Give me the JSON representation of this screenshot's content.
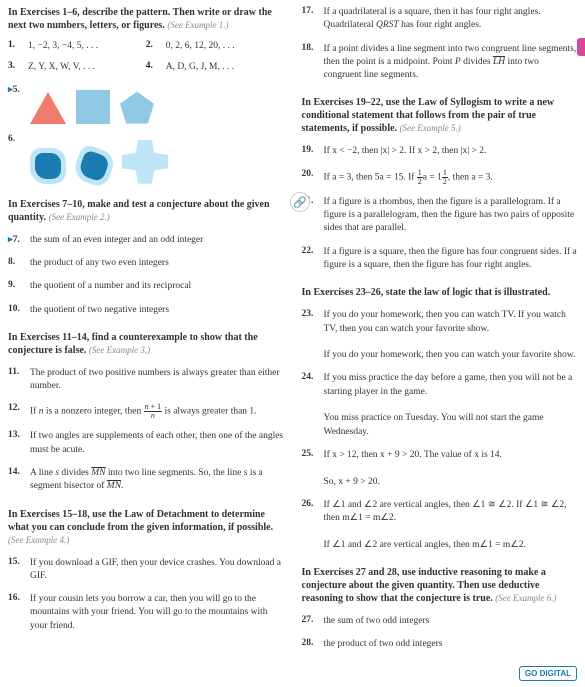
{
  "left": {
    "intro1": "In Exercises 1–6, describe the pattern. Then write or draw the next two numbers, letters, or figures.",
    "see1": "(See Example 1.)",
    "e1n": "1.",
    "e1": "1, −2, 3, −4, 5, . . .",
    "e2n": "2.",
    "e2": "0, 2, 6, 12, 20, . . .",
    "e3n": "3.",
    "e3": "Z, Y, X, W, V, . . .",
    "e4n": "4.",
    "e4": "A, D, G, J, M, . . .",
    "e5n": "5.",
    "e6n": "6.",
    "intro2": "In Exercises 7–10, make and test a conjecture about the given quantity.",
    "see2": "(See Example 2.)",
    "e7n": "7.",
    "e7": "the sum of an even integer and an odd integer",
    "e8n": "8.",
    "e8": "the product of any two even integers",
    "e9n": "9.",
    "e9": "the quotient of a number and its reciprocal",
    "e10n": "10.",
    "e10": "the quotient of two negative integers",
    "intro3": "In Exercises 11–14, find a counterexample to show that the conjecture is false.",
    "see3": "(See Example 3.)",
    "e11n": "11.",
    "e11": "The product of two positive numbers is always greater than either number.",
    "e12n": "12.",
    "e12a": "If ",
    "e12b": " is a nonzero integer, then ",
    "e12c": " is always greater than 1.",
    "e13n": "13.",
    "e13": "If two angles are supplements of each other, then one of the angles must be acute.",
    "e14n": "14.",
    "e14a": "A line ",
    "e14b": " divides ",
    "e14c": " into two line segments. So, the line ",
    "e14d": " is a segment bisector of ",
    "intro4": "In Exercises 15–18, use the Law of Detachment to determine what you can conclude from the given information, if possible.",
    "see4": "(See Example 4.)",
    "e15n": "15.",
    "e15": "If you download a GIF, then your device crashes. You download a GIF.",
    "e16n": "16.",
    "e16": "If your cousin lets you borrow a car, then you will go to the mountains with your friend. You will go to the mountains with your friend."
  },
  "right": {
    "e17n": "17.",
    "e17a": "If a quadrilateral is a square, then it has four right angles. Quadrilateral ",
    "e17b": " has four right angles.",
    "e18n": "18.",
    "e18a": "If a point divides a line segment into two congruent line segments, then the point is a midpoint. Point ",
    "e18b": " divides ",
    "e18c": " into two congruent line segments.",
    "intro5": "In Exercises 19–22, use the Law of Syllogism to write a new conditional statement that follows from the pair of true statements, if possible.",
    "see5": "(See Example 5.)",
    "e19n": "19.",
    "e19": "If x < −2, then |x| > 2. If x > 2, then |x| > 2.",
    "e20n": "20.",
    "e20a": "If a = 3, then 5a = 15. If ",
    "e20b": "a = 1",
    "e20c": ", then a = 3.",
    "e21n": "21.",
    "e21": "If a figure is a rhombus, then the figure is a parallelogram. If a figure is a parallelogram, then the figure has two pairs of opposite sides that are parallel.",
    "e22n": "22.",
    "e22": "If a figure is a square, then the figure has four congruent sides. If a figure is a square, then the figure has four right angles.",
    "intro6": "In Exercises 23–26, state the law of logic that is illustrated.",
    "e23n": "23.",
    "e23": "If you do your homework, then you can watch TV. If you watch TV, then you can watch your favorite show.",
    "e23b": "If you do your homework, then you can watch your favorite show.",
    "e24n": "24.",
    "e24": "If you miss practice the day before a game, then you will not be a starting player in the game.",
    "e24b": "You miss practice on Tuesday. You will not start the game Wednesday.",
    "e25n": "25.",
    "e25": "If x > 12, then x + 9 > 20. The value of x is 14.",
    "e25b": "So, x + 9 > 20.",
    "e26n": "26.",
    "e26a": "If ∠1 and ∠2 are vertical angles, then ∠1 ≅ ∠2. If ∠1 ≅ ∠2, then m∠1 = m∠2.",
    "e26b": "If ∠1 and ∠2 are vertical angles, then m∠1 = m∠2.",
    "intro7": "In Exercises 27 and 28, use inductive reasoning to make a conjecture about the given quantity. Then use deductive reasoning to show that the conjecture is true.",
    "see7": "(See Example 6.)",
    "e27n": "27.",
    "e27": "the sum of two odd integers",
    "e28n": "28.",
    "e28": "the product of two odd integers"
  },
  "ui": {
    "godigital": "GO DIGITAL",
    "link": "🔗"
  }
}
